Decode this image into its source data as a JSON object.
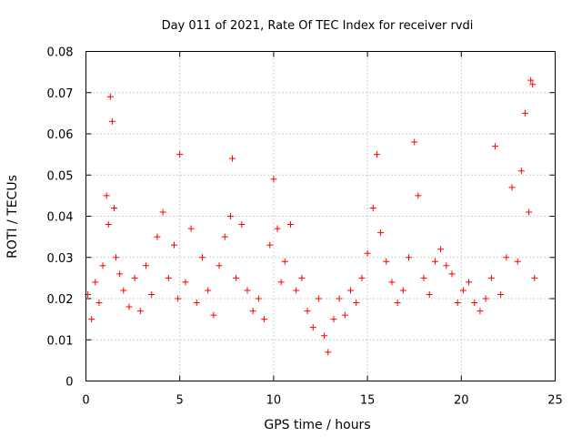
{
  "chart_data": {
    "type": "scatter",
    "title": "Day 011 of 2021, Rate Of TEC Index for receiver rvdi",
    "xlabel": "GPS time / hours",
    "ylabel": "ROTI / TECUs",
    "xlim": [
      0,
      25
    ],
    "ylim": [
      0,
      0.08
    ],
    "xticks": [
      "0",
      "5",
      "10",
      "15",
      "20",
      "25"
    ],
    "yticks": [
      "0",
      "0.01",
      "0.02",
      "0.03",
      "0.04",
      "0.05",
      "0.06",
      "0.07",
      "0.08"
    ],
    "grid": true,
    "legend": "none",
    "series": [
      {
        "color": "#ff0000",
        "marker": "plus",
        "x": [
          0.1,
          0.3,
          0.5,
          0.7,
          0.9,
          1.1,
          1.2,
          1.3,
          1.4,
          1.5,
          1.6,
          1.8,
          2.0,
          2.3,
          2.6,
          2.9,
          3.2,
          3.5,
          3.8,
          4.1,
          4.4,
          4.7,
          4.9,
          5.0,
          5.3,
          5.6,
          5.9,
          6.2,
          6.5,
          6.8,
          7.1,
          7.4,
          7.7,
          7.8,
          8.0,
          8.3,
          8.6,
          8.9,
          9.2,
          9.5,
          9.8,
          10.0,
          10.2,
          10.4,
          10.6,
          10.9,
          11.2,
          11.5,
          11.8,
          12.1,
          12.4,
          12.7,
          12.9,
          13.2,
          13.5,
          13.8,
          14.1,
          14.4,
          14.7,
          15.0,
          15.3,
          15.5,
          15.7,
          16.0,
          16.3,
          16.6,
          16.9,
          17.2,
          17.5,
          17.7,
          18.0,
          18.3,
          18.6,
          18.9,
          19.2,
          19.5,
          19.8,
          20.1,
          20.4,
          20.7,
          21.0,
          21.3,
          21.6,
          21.8,
          22.1,
          22.4,
          22.7,
          23.0,
          23.2,
          23.4,
          23.6,
          23.7,
          23.8,
          23.9
        ],
        "y": [
          0.021,
          0.015,
          0.024,
          0.019,
          0.028,
          0.045,
          0.038,
          0.069,
          0.063,
          0.042,
          0.03,
          0.026,
          0.022,
          0.018,
          0.025,
          0.017,
          0.028,
          0.021,
          0.035,
          0.041,
          0.025,
          0.033,
          0.02,
          0.055,
          0.024,
          0.037,
          0.019,
          0.03,
          0.022,
          0.016,
          0.028,
          0.035,
          0.04,
          0.054,
          0.025,
          0.038,
          0.022,
          0.017,
          0.02,
          0.015,
          0.033,
          0.049,
          0.037,
          0.024,
          0.029,
          0.038,
          0.022,
          0.025,
          0.017,
          0.013,
          0.02,
          0.011,
          0.007,
          0.015,
          0.02,
          0.016,
          0.022,
          0.019,
          0.025,
          0.031,
          0.042,
          0.055,
          0.036,
          0.029,
          0.024,
          0.019,
          0.022,
          0.03,
          0.058,
          0.045,
          0.025,
          0.021,
          0.029,
          0.032,
          0.028,
          0.026,
          0.019,
          0.022,
          0.024,
          0.019,
          0.017,
          0.02,
          0.025,
          0.057,
          0.021,
          0.03,
          0.047,
          0.029,
          0.051,
          0.065,
          0.041,
          0.073,
          0.072,
          0.025
        ]
      }
    ]
  }
}
